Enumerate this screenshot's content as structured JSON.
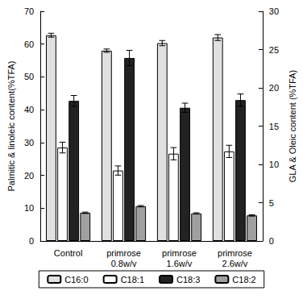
{
  "chart_data": {
    "type": "bar",
    "categories": [
      "Control",
      "primrose\n0.8w/v",
      "primrose\n1.6w/v",
      "primrose\n2.6w/v"
    ],
    "y_label": "Palmitic & linoleic content(%TFA)",
    "y2_label": "GLA & Oleic content (%TFA)",
    "ylim": [
      0,
      70
    ],
    "yticks": [
      0,
      10,
      20,
      30,
      40,
      50,
      60,
      70
    ],
    "y2lim": [
      0,
      30
    ],
    "y2ticks": [
      0,
      5,
      10,
      15,
      20,
      25,
      30
    ],
    "legend": "bottom",
    "series": [
      {
        "name": "C16:0",
        "color": "#e0e0e0",
        "values": [
          62.7,
          58.0,
          60.3,
          62.0
        ],
        "errors": [
          0.6,
          0.5,
          0.8,
          0.9
        ]
      },
      {
        "name": "C18:1",
        "color": "#ffffff",
        "axis": "y2",
        "values": [
          12.2,
          9.2,
          11.4,
          11.7
        ],
        "errors": [
          0.7,
          0.6,
          0.8,
          0.8
        ]
      },
      {
        "name": "C18:3",
        "color": "#222222",
        "axis": "y2",
        "values": [
          18.3,
          23.9,
          17.4,
          18.4
        ],
        "errors": [
          0.7,
          1.0,
          0.6,
          0.8
        ]
      },
      {
        "name": "C18:2",
        "color": "#a0a0a0",
        "values": [
          8.6,
          10.6,
          8.4,
          7.8
        ],
        "errors": [
          0.2,
          0.2,
          0.2,
          0.2
        ]
      }
    ]
  }
}
